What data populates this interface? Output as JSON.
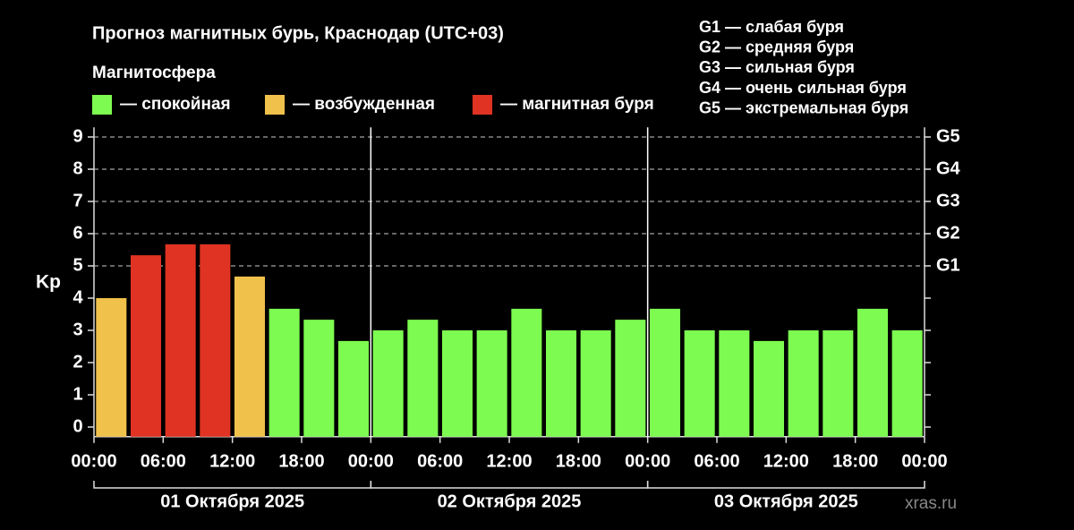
{
  "chart_data": {
    "type": "bar",
    "title": "Прогноз магнитных бурь, Краснодар (UTC+03)",
    "legend_title": "Магнитосфера",
    "legend": [
      {
        "label": "— спокойная",
        "color": "#7dfb50"
      },
      {
        "label": "— возбужденная",
        "color": "#f0c14b"
      },
      {
        "label": "— магнитная буря",
        "color": "#e03323"
      }
    ],
    "storm_levels": [
      "G1 — слабая буря",
      "G2 — средняя буря",
      "G3 — сильная буря",
      "G4 — очень сильная буря",
      "G5 — экстремальная буря"
    ],
    "ylabel": "Kp",
    "xlim": [
      0,
      72
    ],
    "xticks": [
      {
        "value": 0,
        "label": "00:00"
      },
      {
        "value": 6,
        "label": "06:00"
      },
      {
        "value": 12,
        "label": "12:00"
      },
      {
        "value": 18,
        "label": "18:00"
      },
      {
        "value": 24,
        "label": "00:00"
      },
      {
        "value": 30,
        "label": "06:00"
      },
      {
        "value": 36,
        "label": "12:00"
      },
      {
        "value": 42,
        "label": "18:00"
      },
      {
        "value": 48,
        "label": "00:00"
      },
      {
        "value": 54,
        "label": "06:00"
      },
      {
        "value": 60,
        "label": "12:00"
      },
      {
        "value": 66,
        "label": "18:00"
      },
      {
        "value": 72,
        "label": "00:00"
      }
    ],
    "days": [
      "01 Октября 2025",
      "02 Октября 2025",
      "03 Октября 2025"
    ],
    "ylim": [
      -0.3,
      9.3
    ],
    "yticks": [
      0,
      1,
      2,
      3,
      4,
      5,
      6,
      7,
      8,
      9
    ],
    "y2lim": [
      -0.3,
      9.3
    ],
    "y2ticks": [
      {
        "value": 5,
        "label": "G1"
      },
      {
        "value": 6,
        "label": "G2"
      },
      {
        "value": 7,
        "label": "G3"
      },
      {
        "value": 8,
        "label": "G4"
      },
      {
        "value": 9,
        "label": "G5"
      }
    ],
    "y2_grid": true,
    "x": [
      1.5,
      4.5,
      7.5,
      10.5,
      13.5,
      16.5,
      19.5,
      22.5,
      25.5,
      28.5,
      31.5,
      34.5,
      37.5,
      40.5,
      43.5,
      46.5,
      49.5,
      52.5,
      55.5,
      58.5,
      61.5,
      64.5,
      67.5,
      70.5
    ],
    "values": [
      4.0,
      5.33,
      5.67,
      5.67,
      4.67,
      3.67,
      3.33,
      2.67,
      3.0,
      3.33,
      3.0,
      3.0,
      3.67,
      3.0,
      3.0,
      3.33,
      3.67,
      3.0,
      3.0,
      2.67,
      3.0,
      3.0,
      3.67,
      3.0
    ],
    "colors": [
      "#f0c14b",
      "#e03323",
      "#e03323",
      "#e03323",
      "#f0c14b",
      "#7dfb50",
      "#7dfb50",
      "#7dfb50",
      "#7dfb50",
      "#7dfb50",
      "#7dfb50",
      "#7dfb50",
      "#7dfb50",
      "#7dfb50",
      "#7dfb50",
      "#7dfb50",
      "#7dfb50",
      "#7dfb50",
      "#7dfb50",
      "#7dfb50",
      "#7dfb50",
      "#7dfb50",
      "#7dfb50",
      "#7dfb50"
    ],
    "watermark": "xras.ru"
  }
}
